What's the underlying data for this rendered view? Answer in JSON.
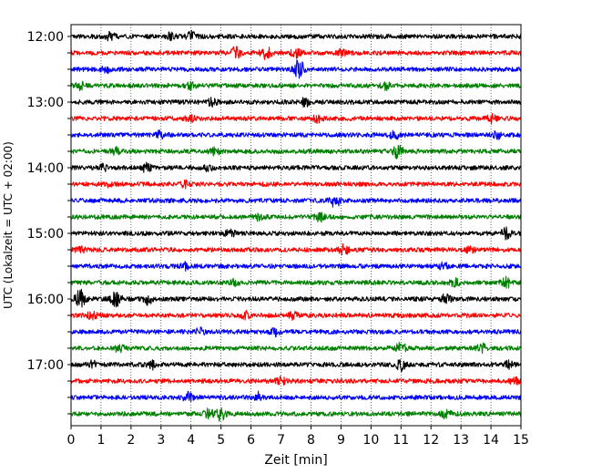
{
  "chart_data": {
    "type": "line",
    "title": "",
    "xlabel": "Zeit  [min]",
    "ylabel": "UTC (Lokalzeit = UTC + 02:00)",
    "xlim": [
      0,
      15
    ],
    "x_ticks": [
      "0",
      "1",
      "2",
      "3",
      "4",
      "5",
      "6",
      "7",
      "8",
      "9",
      "10",
      "11",
      "12",
      "13",
      "14",
      "15"
    ],
    "y_tick_labels": [
      "12:00",
      "13:00",
      "14:00",
      "15:00",
      "16:00",
      "17:00"
    ],
    "grid": "vertical dotted",
    "trace_colors": [
      "#000000",
      "#ff0000",
      "#0000ff",
      "#008000"
    ],
    "traces": [
      {
        "start": "12:00",
        "events": [
          {
            "t": 1.3,
            "amp": 0.3
          },
          {
            "t": 3.3,
            "amp": 0.3
          },
          {
            "t": 4.0,
            "amp": 0.4
          }
        ]
      },
      {
        "start": "12:15",
        "events": [
          {
            "t": 5.5,
            "amp": 0.5
          },
          {
            "t": 6.5,
            "amp": 0.6
          },
          {
            "t": 7.5,
            "amp": 0.4
          },
          {
            "t": 9.0,
            "amp": 0.3
          }
        ]
      },
      {
        "start": "12:30",
        "events": [
          {
            "t": 1.2,
            "amp": 0.3
          },
          {
            "t": 7.6,
            "amp": 0.9
          }
        ]
      },
      {
        "start": "12:45",
        "events": [
          {
            "t": 0.3,
            "amp": 0.3
          },
          {
            "t": 4.0,
            "amp": 0.3
          },
          {
            "t": 10.5,
            "amp": 0.3
          }
        ]
      },
      {
        "start": "13:00",
        "events": [
          {
            "t": 4.7,
            "amp": 0.35
          },
          {
            "t": 7.8,
            "amp": 0.35
          }
        ]
      },
      {
        "start": "13:15",
        "events": [
          {
            "t": 4.0,
            "amp": 0.35
          },
          {
            "t": 8.2,
            "amp": 0.3
          },
          {
            "t": 14.0,
            "amp": 0.4
          }
        ]
      },
      {
        "start": "13:30",
        "events": [
          {
            "t": 3.0,
            "amp": 0.4
          },
          {
            "t": 10.8,
            "amp": 0.4
          },
          {
            "t": 14.2,
            "amp": 0.3
          }
        ]
      },
      {
        "start": "13:45",
        "events": [
          {
            "t": 1.5,
            "amp": 0.3
          },
          {
            "t": 4.8,
            "amp": 0.3
          },
          {
            "t": 10.9,
            "amp": 0.6
          }
        ]
      },
      {
        "start": "14:00",
        "events": [
          {
            "t": 1.1,
            "amp": 0.3
          },
          {
            "t": 2.5,
            "amp": 0.4
          },
          {
            "t": 4.6,
            "amp": 0.3
          }
        ]
      },
      {
        "start": "14:15",
        "events": [
          {
            "t": 1.3,
            "amp": 0.25
          },
          {
            "t": 3.8,
            "amp": 0.25
          }
        ]
      },
      {
        "start": "14:30",
        "events": [
          {
            "t": 8.8,
            "amp": 0.7
          }
        ]
      },
      {
        "start": "14:45",
        "events": [
          {
            "t": 6.3,
            "amp": 0.3
          },
          {
            "t": 8.3,
            "amp": 0.35
          }
        ]
      },
      {
        "start": "15:00",
        "events": [
          {
            "t": 5.3,
            "amp": 0.3
          },
          {
            "t": 14.5,
            "amp": 0.5
          }
        ]
      },
      {
        "start": "15:15",
        "events": [
          {
            "t": 0.3,
            "amp": 0.3
          },
          {
            "t": 9.1,
            "amp": 0.45
          },
          {
            "t": 13.3,
            "amp": 0.3
          }
        ]
      },
      {
        "start": "15:30",
        "events": [
          {
            "t": 3.8,
            "amp": 0.3
          },
          {
            "t": 12.4,
            "amp": 0.3
          }
        ]
      },
      {
        "start": "15:45",
        "events": [
          {
            "t": 5.5,
            "amp": 0.3
          },
          {
            "t": 12.8,
            "amp": 0.3
          },
          {
            "t": 14.5,
            "amp": 0.5
          }
        ]
      },
      {
        "start": "16:00",
        "events": [
          {
            "t": 0.3,
            "amp": 0.9
          },
          {
            "t": 1.5,
            "amp": 0.8
          },
          {
            "t": 2.6,
            "amp": 0.5
          },
          {
            "t": 12.5,
            "amp": 0.4
          }
        ]
      },
      {
        "start": "16:15",
        "events": [
          {
            "t": 0.7,
            "amp": 0.3
          },
          {
            "t": 5.8,
            "amp": 0.3
          },
          {
            "t": 7.4,
            "amp": 0.3
          }
        ]
      },
      {
        "start": "16:30",
        "events": [
          {
            "t": 4.3,
            "amp": 0.3
          },
          {
            "t": 6.8,
            "amp": 0.3
          }
        ]
      },
      {
        "start": "16:45",
        "events": [
          {
            "t": 1.6,
            "amp": 0.3
          },
          {
            "t": 11.0,
            "amp": 0.5
          },
          {
            "t": 13.7,
            "amp": 0.4
          }
        ]
      },
      {
        "start": "17:00",
        "events": [
          {
            "t": 0.7,
            "amp": 0.3
          },
          {
            "t": 2.7,
            "amp": 0.4
          },
          {
            "t": 11.0,
            "amp": 0.5
          },
          {
            "t": 14.6,
            "amp": 0.3
          }
        ]
      },
      {
        "start": "17:15",
        "events": [
          {
            "t": 7.0,
            "amp": 0.3
          },
          {
            "t": 14.8,
            "amp": 0.3
          }
        ]
      },
      {
        "start": "17:30",
        "events": [
          {
            "t": 3.9,
            "amp": 0.4
          },
          {
            "t": 6.2,
            "amp": 0.45
          }
        ]
      },
      {
        "start": "17:45",
        "events": [
          {
            "t": 4.6,
            "amp": 0.4
          },
          {
            "t": 5.0,
            "amp": 0.6
          },
          {
            "t": 12.5,
            "amp": 0.35
          }
        ]
      }
    ]
  }
}
